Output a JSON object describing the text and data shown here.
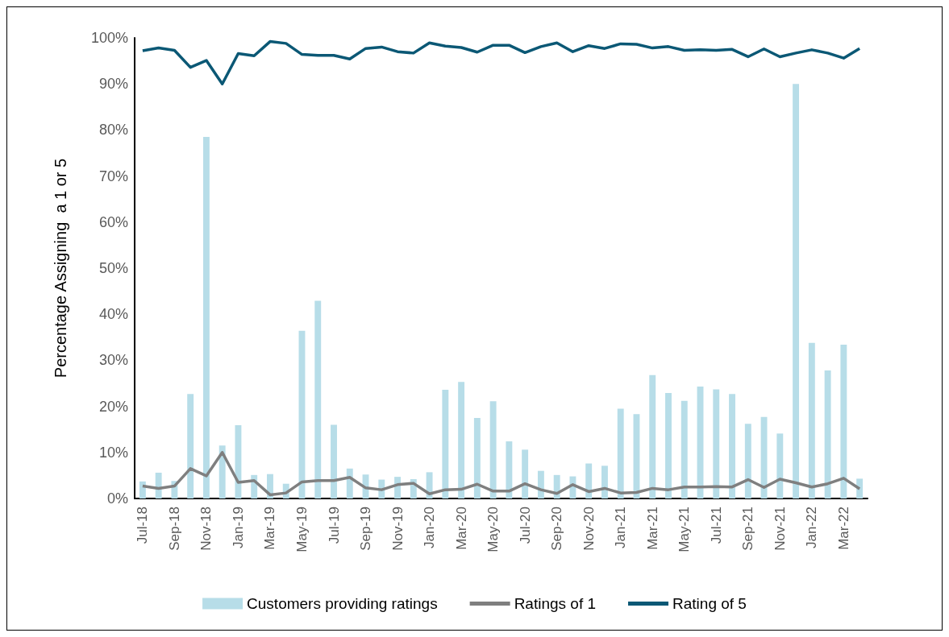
{
  "chart_data": {
    "type": "bar",
    "ylabel": "Percentage Assigning  a 1 or 5",
    "categories": [
      "Jul-18",
      null,
      "Sep-18",
      null,
      "Nov-18",
      null,
      "Jan-19",
      null,
      "Mar-19",
      null,
      "May-19",
      null,
      "Jul-19",
      null,
      "Sep-19",
      null,
      "Nov-19",
      null,
      "Jan-20",
      null,
      "Mar-20",
      null,
      "May-20",
      null,
      "Jul-20",
      null,
      "Sep-20",
      null,
      "Nov-20",
      null,
      "Jan-21",
      null,
      "Mar-21",
      null,
      "May-21",
      null,
      "Jul-21",
      null,
      "Sep-21",
      null,
      "Nov-21",
      null,
      "Jan-22",
      null,
      "Mar-22",
      null
    ],
    "series": [
      {
        "name": "Customers providing ratings",
        "color": "#b7dde8",
        "values": [
          3.7,
          5.6,
          3.8,
          22.7,
          78.5,
          11.5,
          15.9,
          5.1,
          5.3,
          3.2,
          36.4,
          42.9,
          16.0,
          6.5,
          5.2,
          4.1,
          4.7,
          4.2,
          5.7,
          23.6,
          25.3,
          17.5,
          21.1,
          12.4,
          10.6,
          6.0,
          5.1,
          4.8,
          7.6,
          7.1,
          19.5,
          18.3,
          26.8,
          22.9,
          21.2,
          24.3,
          23.7,
          22.7,
          16.2,
          17.7,
          14.1,
          90.0,
          33.8,
          27.8,
          33.4,
          4.3
        ]
      },
      {
        "name": "Ratings of 1",
        "type": "line",
        "color": "#7f7f7f",
        "values": [
          2.7,
          2.2,
          2.7,
          6.5,
          4.9,
          10.0,
          3.5,
          3.9,
          0.8,
          1.2,
          3.6,
          3.9,
          3.9,
          4.6,
          2.3,
          1.9,
          3.0,
          3.3,
          1.0,
          1.9,
          2.0,
          3.1,
          1.6,
          1.6,
          3.2,
          1.9,
          1.1,
          3.0,
          1.5,
          2.2,
          1.2,
          1.3,
          2.2,
          1.9,
          2.5,
          2.5,
          2.6,
          2.5,
          4.1,
          2.4,
          4.2,
          3.4,
          2.5,
          3.2,
          4.4,
          2.1
        ]
      },
      {
        "name": "Rating of 5",
        "type": "line",
        "color": "#0b5875",
        "values": [
          97.2,
          97.8,
          97.3,
          93.6,
          95.1,
          90.0,
          96.6,
          96.1,
          99.2,
          98.8,
          96.4,
          96.2,
          96.2,
          95.4,
          97.7,
          98.0,
          97.0,
          96.7,
          98.9,
          98.2,
          97.9,
          96.9,
          98.4,
          98.4,
          96.8,
          98.1,
          98.9,
          97.0,
          98.3,
          97.7,
          98.7,
          98.6,
          97.8,
          98.1,
          97.3,
          97.4,
          97.3,
          97.5,
          95.9,
          97.6,
          95.9,
          96.7,
          97.4,
          96.7,
          95.6,
          97.7
        ]
      }
    ],
    "ylim": [
      0,
      100
    ],
    "yticks": [
      {
        "value": 0,
        "label": "0%"
      },
      {
        "value": 10,
        "label": "10%"
      },
      {
        "value": 20,
        "label": "20%"
      },
      {
        "value": 30,
        "label": "30%"
      },
      {
        "value": 40,
        "label": "40%"
      },
      {
        "value": 50,
        "label": "50%"
      },
      {
        "value": 60,
        "label": "60%"
      },
      {
        "value": 70,
        "label": "70%"
      },
      {
        "value": 80,
        "label": "80%"
      },
      {
        "value": 90,
        "label": "90%"
      },
      {
        "value": 100,
        "label": "100%"
      }
    ],
    "grid": false,
    "legend": "bottom",
    "marker": "none",
    "line_style": "solid"
  }
}
